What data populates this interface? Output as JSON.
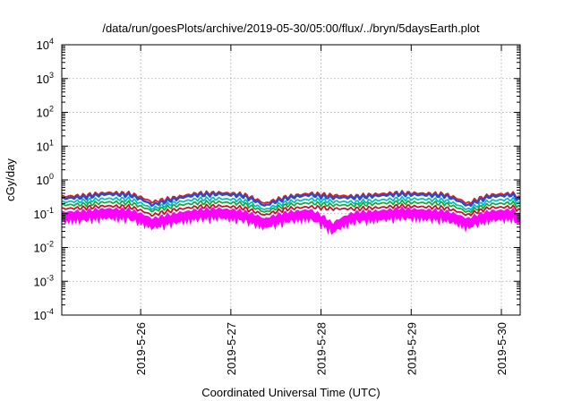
{
  "chart_data": {
    "type": "area",
    "title": "/data/run/goesPlots/archive/2019-05-30/05:00/flux/../bryn/5daysEarth.plot",
    "xlabel": "Coordinated Universal Time (UTC)",
    "ylabel": "cGy/day",
    "y_scale": "log",
    "ylim": [
      0.0001,
      10000
    ],
    "y_ticks": [
      {
        "base": "10",
        "exp": "-4"
      },
      {
        "base": "10",
        "exp": "-3"
      },
      {
        "base": "10",
        "exp": "-2"
      },
      {
        "base": "10",
        "exp": "-1"
      },
      {
        "base": "10",
        "exp": "0"
      },
      {
        "base": "10",
        "exp": "1"
      },
      {
        "base": "10",
        "exp": "2"
      },
      {
        "base": "10",
        "exp": "3"
      },
      {
        "base": "10",
        "exp": "4"
      }
    ],
    "xlim": [
      "2019-05-25 03:00",
      "2019-05-30 05:00"
    ],
    "x_ticks": [
      "2019-5-26",
      "2019-5-27",
      "2019-5-28",
      "2019-5-29",
      "2019-5-30"
    ],
    "grid": true,
    "legend": "none",
    "x": [
      "2019-05-25 03:00",
      "2019-05-25 09:00",
      "2019-05-25 15:00",
      "2019-05-25 21:00",
      "2019-05-26 03:00",
      "2019-05-26 09:00",
      "2019-05-26 15:00",
      "2019-05-26 21:00",
      "2019-05-27 03:00",
      "2019-05-27 09:00",
      "2019-05-27 15:00",
      "2019-05-27 21:00",
      "2019-05-28 03:00",
      "2019-05-28 09:00",
      "2019-05-28 15:00",
      "2019-05-28 21:00",
      "2019-05-29 03:00",
      "2019-05-29 09:00",
      "2019-05-29 15:00",
      "2019-05-29 21:00",
      "2019-05-30 03:00",
      "2019-05-30 05:00"
    ],
    "series": [
      {
        "color": "#e41a1c",
        "values": [
          0.32,
          0.35,
          0.42,
          0.4,
          0.22,
          0.3,
          0.4,
          0.42,
          0.38,
          0.2,
          0.32,
          0.4,
          0.35,
          0.33,
          0.38,
          0.42,
          0.4,
          0.38,
          0.2,
          0.36,
          0.4,
          0.28
        ]
      },
      {
        "color": "#1f4fd8",
        "values": [
          0.28,
          0.31,
          0.38,
          0.36,
          0.18,
          0.27,
          0.36,
          0.38,
          0.34,
          0.17,
          0.29,
          0.36,
          0.3,
          0.3,
          0.34,
          0.38,
          0.36,
          0.34,
          0.17,
          0.32,
          0.36,
          0.24
        ]
      },
      {
        "color": "#00c0c0",
        "values": [
          0.22,
          0.24,
          0.28,
          0.27,
          0.14,
          0.21,
          0.27,
          0.28,
          0.25,
          0.13,
          0.22,
          0.27,
          0.23,
          0.22,
          0.25,
          0.28,
          0.27,
          0.25,
          0.13,
          0.24,
          0.27,
          0.19
        ]
      },
      {
        "color": "#1fa83a",
        "values": [
          0.18,
          0.19,
          0.22,
          0.21,
          0.12,
          0.17,
          0.21,
          0.22,
          0.2,
          0.11,
          0.18,
          0.21,
          0.18,
          0.18,
          0.2,
          0.22,
          0.21,
          0.2,
          0.11,
          0.19,
          0.21,
          0.15
        ]
      },
      {
        "color": "#c8102e",
        "values": [
          0.14,
          0.15,
          0.17,
          0.16,
          0.09,
          0.13,
          0.16,
          0.17,
          0.15,
          0.09,
          0.14,
          0.16,
          0.14,
          0.14,
          0.15,
          0.17,
          0.16,
          0.15,
          0.09,
          0.15,
          0.16,
          0.12
        ]
      },
      {
        "color": "#ff00ff",
        "values": [
          0.11,
          0.12,
          0.14,
          0.13,
          0.07,
          0.1,
          0.13,
          0.14,
          0.12,
          0.07,
          0.11,
          0.13,
          0.05,
          0.11,
          0.12,
          0.14,
          0.13,
          0.12,
          0.07,
          0.12,
          0.13,
          0.09
        ]
      }
    ]
  }
}
